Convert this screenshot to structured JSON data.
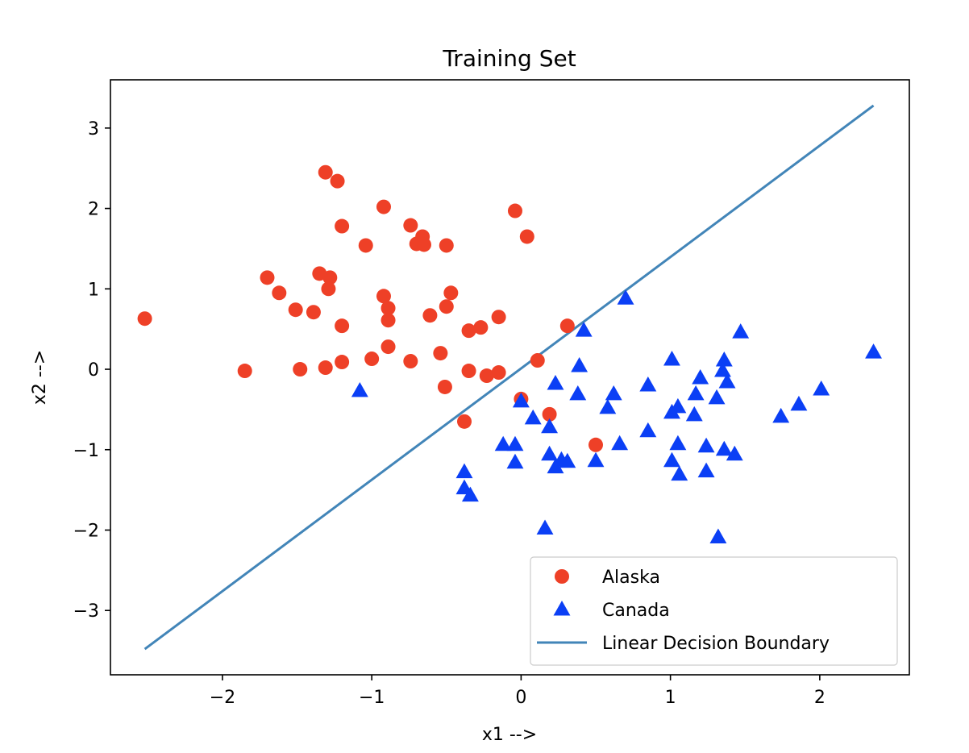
{
  "chart_data": {
    "type": "scatter",
    "title": "Training Set",
    "xlabel": "x1 -->",
    "ylabel": "x2 -->",
    "xlim": [
      -2.75,
      2.6
    ],
    "ylim": [
      -3.8,
      3.6
    ],
    "xticks": [
      -2,
      -1,
      0,
      1,
      2
    ],
    "yticks": [
      -3,
      -2,
      -1,
      0,
      1,
      2,
      3
    ],
    "xtick_labels": [
      "−2",
      "−1",
      "0",
      "1",
      "2"
    ],
    "ytick_labels": [
      "−3",
      "−2",
      "−1",
      "0",
      "1",
      "2",
      "3"
    ],
    "grid": false,
    "legend_position": "lower-right",
    "series": [
      {
        "name": "Alaska",
        "kind": "points",
        "marker": "circle",
        "color": "#ee4027",
        "points": [
          [
            -1.31,
            2.45
          ],
          [
            -1.23,
            2.34
          ],
          [
            -0.92,
            2.02
          ],
          [
            -1.2,
            1.78
          ],
          [
            -0.74,
            1.79
          ],
          [
            -0.04,
            1.97
          ],
          [
            -0.7,
            1.56
          ],
          [
            -0.66,
            1.65
          ],
          [
            -0.65,
            1.55
          ],
          [
            -0.5,
            1.54
          ],
          [
            -1.04,
            1.54
          ],
          [
            0.04,
            1.65
          ],
          [
            -1.35,
            1.19
          ],
          [
            -1.28,
            1.14
          ],
          [
            -1.7,
            1.14
          ],
          [
            -1.29,
            1.0
          ],
          [
            -1.62,
            0.95
          ],
          [
            -0.92,
            0.91
          ],
          [
            -0.47,
            0.95
          ],
          [
            -1.51,
            0.74
          ],
          [
            -1.39,
            0.71
          ],
          [
            -0.89,
            0.76
          ],
          [
            -0.5,
            0.78
          ],
          [
            -0.61,
            0.67
          ],
          [
            -0.89,
            0.61
          ],
          [
            -0.15,
            0.65
          ],
          [
            -1.2,
            0.54
          ],
          [
            -0.35,
            0.48
          ],
          [
            -0.27,
            0.52
          ],
          [
            0.31,
            0.54
          ],
          [
            -2.52,
            0.63
          ],
          [
            -0.89,
            0.28
          ],
          [
            -1.0,
            0.13
          ],
          [
            -0.74,
            0.1
          ],
          [
            -1.2,
            0.09
          ],
          [
            -0.54,
            0.2
          ],
          [
            0.11,
            0.11
          ],
          [
            -1.85,
            -0.02
          ],
          [
            -1.48,
            0.0
          ],
          [
            -1.31,
            0.02
          ],
          [
            -0.35,
            -0.02
          ],
          [
            -0.23,
            -0.08
          ],
          [
            -0.15,
            -0.04
          ],
          [
            -0.51,
            -0.22
          ],
          [
            0.0,
            -0.37
          ],
          [
            0.19,
            -0.56
          ],
          [
            -0.38,
            -0.65
          ],
          [
            0.5,
            -0.94
          ]
        ]
      },
      {
        "name": "Canada",
        "kind": "points",
        "marker": "triangle",
        "color": "#0b3ff5",
        "points": [
          [
            0.7,
            0.88
          ],
          [
            0.42,
            0.48
          ],
          [
            1.47,
            0.46
          ],
          [
            2.36,
            0.21
          ],
          [
            1.01,
            0.12
          ],
          [
            1.36,
            0.11
          ],
          [
            0.39,
            0.04
          ],
          [
            1.35,
            -0.02
          ],
          [
            1.38,
            -0.16
          ],
          [
            1.2,
            -0.11
          ],
          [
            0.23,
            -0.18
          ],
          [
            0.85,
            -0.2
          ],
          [
            -1.08,
            -0.27
          ],
          [
            2.01,
            -0.25
          ],
          [
            0.38,
            -0.31
          ],
          [
            0.62,
            -0.31
          ],
          [
            1.17,
            -0.31
          ],
          [
            1.31,
            -0.36
          ],
          [
            0.0,
            -0.4
          ],
          [
            1.05,
            -0.47
          ],
          [
            1.86,
            -0.44
          ],
          [
            0.58,
            -0.48
          ],
          [
            1.01,
            -0.54
          ],
          [
            1.16,
            -0.57
          ],
          [
            0.08,
            -0.61
          ],
          [
            1.74,
            -0.59
          ],
          [
            0.19,
            -0.72
          ],
          [
            0.85,
            -0.77
          ],
          [
            -0.12,
            -0.94
          ],
          [
            -0.04,
            -0.94
          ],
          [
            0.66,
            -0.93
          ],
          [
            1.05,
            -0.93
          ],
          [
            1.24,
            -0.96
          ],
          [
            1.36,
            -1.0
          ],
          [
            1.43,
            -1.06
          ],
          [
            0.19,
            -1.06
          ],
          [
            0.27,
            -1.13
          ],
          [
            0.31,
            -1.15
          ],
          [
            0.5,
            -1.14
          ],
          [
            -0.04,
            -1.16
          ],
          [
            1.01,
            -1.14
          ],
          [
            0.23,
            -1.22
          ],
          [
            1.24,
            -1.27
          ],
          [
            1.06,
            -1.31
          ],
          [
            -0.38,
            -1.28
          ],
          [
            -0.38,
            -1.48
          ],
          [
            -0.34,
            -1.57
          ],
          [
            0.16,
            -1.98
          ],
          [
            1.32,
            -2.09
          ]
        ]
      },
      {
        "name": "Linear Decision Boundary",
        "kind": "line",
        "color": "#4285b8",
        "points": [
          [
            -2.52,
            -3.48
          ],
          [
            2.36,
            3.28
          ]
        ]
      }
    ]
  }
}
